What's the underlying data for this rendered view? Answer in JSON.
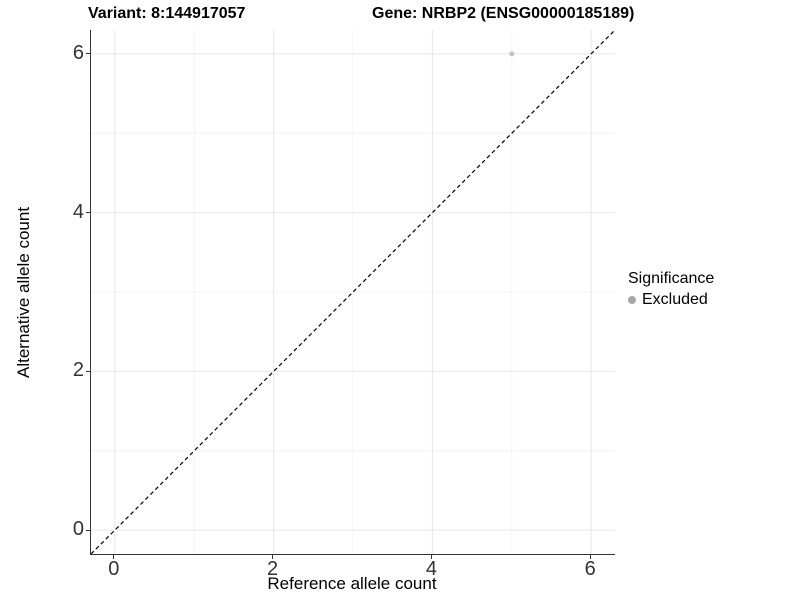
{
  "titles": {
    "variant": "Variant: 8:144917057",
    "gene": "Gene: NRBP2 (ENSG00000185189)"
  },
  "legend": {
    "title": "Significance",
    "items": [
      {
        "label": "Excluded",
        "color": "#a8a8a8"
      }
    ]
  },
  "axes": {
    "x": {
      "ticks": [
        0,
        2,
        4,
        6
      ],
      "tick_labels": [
        "0",
        "2",
        "4",
        "6"
      ],
      "minor_ticks": [
        1,
        3,
        5
      ]
    },
    "y": {
      "ticks": [
        0,
        2,
        4,
        6
      ],
      "tick_labels": [
        "0",
        "2",
        "4",
        "6"
      ],
      "minor_ticks": [
        1,
        3,
        5
      ]
    }
  },
  "colors": {
    "background": "#ffffff",
    "grid_major": "#e7e7e7",
    "grid_minor": "#f4f4f4",
    "axis_line": "#333333",
    "tick_text": "#333333",
    "point": "#c4c4c4",
    "legend_point": "#a8a8a8",
    "ref_line": "#000000"
  },
  "chart_data": {
    "type": "scatter",
    "title": "Variant: 8:144917057    Gene: NRBP2 (ENSG00000185189)",
    "xlabel": "Reference allele count",
    "ylabel": "Alternative allele count",
    "xlim": [
      -0.3,
      6.3
    ],
    "ylim": [
      -0.3,
      6.3
    ],
    "x_ticks": [
      0,
      2,
      4,
      6
    ],
    "y_ticks": [
      0,
      2,
      4,
      6
    ],
    "grid": true,
    "legend_position": "right",
    "series": [
      {
        "name": "Excluded",
        "color": "#c4c4c4",
        "points": [
          {
            "x": 5,
            "y": 6
          }
        ]
      }
    ],
    "reference_line": {
      "type": "identity",
      "equation": "y = x",
      "style": "dashed",
      "color": "#000000"
    }
  }
}
